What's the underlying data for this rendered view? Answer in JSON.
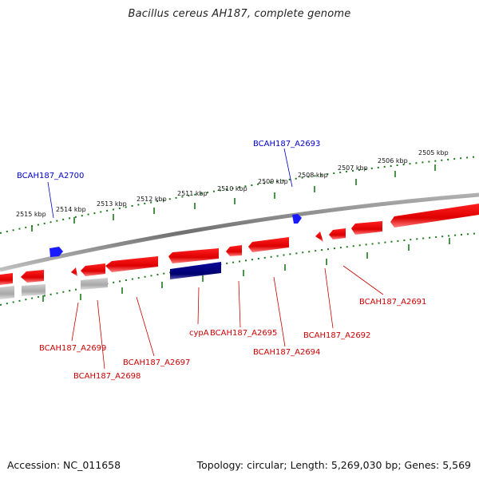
{
  "title": "Bacillus cereus AH187, complete genome",
  "footer": {
    "accession": "Accession: NC_011658",
    "summary": "Topology: circular; Length: 5,269,030 bp; Genes: 5,569"
  },
  "colors": {
    "backbone": "#8a8a8a",
    "ticks": "#1a7a1a",
    "forward_gene": "#ee1111",
    "reverse_gene": "#ee1111",
    "forward_label": "#0000cc",
    "reverse_label": "#cc0000",
    "highlight_gene": "#000080",
    "pseudo_gene": "#b8b8b8",
    "blue_gene": "#1a1aff"
  },
  "scale": {
    "kbp_labels": [
      "2515 kbp",
      "2514 kbp",
      "2513 kbp",
      "2512 kbp",
      "2511 kbp",
      "2510 kbp",
      "2509 kbp",
      "2508 kbp",
      "2507 kbp",
      "2506 kbp",
      "2505 kbp"
    ]
  },
  "labels": {
    "top": [
      "BCAH187_A2700",
      "BCAH187_A2693"
    ],
    "bottom": [
      "BCAH187_A2699",
      "BCAH187_A2698",
      "BCAH187_A2697",
      "cypA",
      "BCAH187_A2695",
      "BCAH187_A2694",
      "BCAH187_A2692",
      "BCAH187_A2691"
    ]
  }
}
